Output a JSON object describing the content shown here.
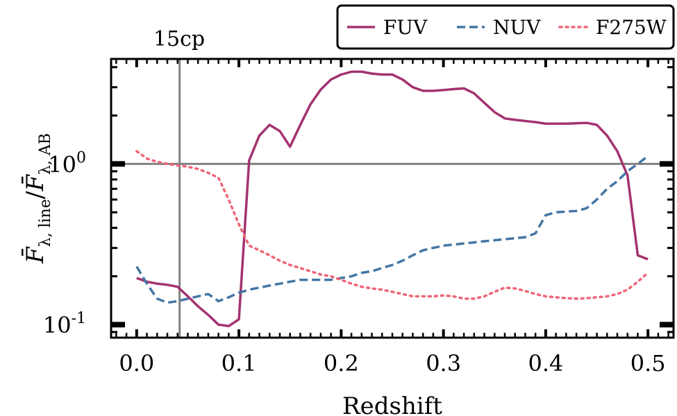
{
  "chart_data": {
    "type": "line",
    "title": "15cp",
    "xlabel": "Redshift",
    "ylabel": {
      "main": "F̄",
      "main_sub": "λ, line",
      "sep": "/",
      "denom": "F̄",
      "denom_sub": "λ, AB"
    },
    "xlim": [
      -0.025,
      0.525
    ],
    "ylim": [
      0.083,
      4.5
    ],
    "yscale": "log",
    "x_ticks": [
      {
        "value": 0.0,
        "label": "0.0"
      },
      {
        "value": 0.1,
        "label": "0.1"
      },
      {
        "value": 0.2,
        "label": "0.2"
      },
      {
        "value": 0.3,
        "label": "0.3"
      },
      {
        "value": 0.4,
        "label": "0.4"
      },
      {
        "value": 0.5,
        "label": "0.5"
      }
    ],
    "y_ticks": [
      {
        "value": 0.1,
        "base": "10",
        "exp": "-1"
      },
      {
        "value": 1.0,
        "base": "10",
        "exp": "0"
      }
    ],
    "reference_lines": {
      "vertical_x": 0.042,
      "horizontal_y": 1.0,
      "color": "#808080"
    },
    "legend": {
      "placement": "top-right, above plot"
    },
    "series": [
      {
        "name": "FUV",
        "color": "#a3336f",
        "style": "solid",
        "x": [
          0.0,
          0.01,
          0.02,
          0.03,
          0.04,
          0.05,
          0.06,
          0.07,
          0.08,
          0.09,
          0.1,
          0.11,
          0.12,
          0.13,
          0.14,
          0.15,
          0.16,
          0.17,
          0.18,
          0.19,
          0.2,
          0.21,
          0.22,
          0.23,
          0.24,
          0.25,
          0.26,
          0.27,
          0.28,
          0.29,
          0.3,
          0.31,
          0.32,
          0.33,
          0.34,
          0.35,
          0.36,
          0.37,
          0.38,
          0.39,
          0.4,
          0.41,
          0.42,
          0.43,
          0.44,
          0.45,
          0.46,
          0.47,
          0.48,
          0.49,
          0.5
        ],
        "y": [
          0.195,
          0.185,
          0.18,
          0.177,
          0.172,
          0.15,
          0.13,
          0.115,
          0.1,
          0.098,
          0.108,
          1.05,
          1.5,
          1.75,
          1.6,
          1.28,
          1.75,
          2.35,
          2.9,
          3.35,
          3.6,
          3.75,
          3.75,
          3.65,
          3.6,
          3.6,
          3.35,
          3.0,
          2.85,
          2.85,
          2.88,
          2.92,
          2.95,
          2.75,
          2.4,
          2.1,
          1.92,
          1.88,
          1.85,
          1.82,
          1.78,
          1.78,
          1.78,
          1.79,
          1.8,
          1.75,
          1.5,
          1.2,
          0.85,
          0.27,
          0.255
        ]
      },
      {
        "name": "NUV",
        "color": "#4476a4",
        "style": "dashed",
        "x": [
          0.0,
          0.01,
          0.02,
          0.03,
          0.04,
          0.05,
          0.06,
          0.07,
          0.08,
          0.09,
          0.1,
          0.11,
          0.12,
          0.13,
          0.14,
          0.15,
          0.16,
          0.17,
          0.18,
          0.19,
          0.2,
          0.21,
          0.22,
          0.23,
          0.24,
          0.25,
          0.26,
          0.27,
          0.28,
          0.29,
          0.3,
          0.31,
          0.32,
          0.33,
          0.34,
          0.35,
          0.36,
          0.37,
          0.38,
          0.39,
          0.4,
          0.41,
          0.42,
          0.43,
          0.44,
          0.45,
          0.46,
          0.47,
          0.48,
          0.49,
          0.5
        ],
        "y": [
          0.23,
          0.18,
          0.145,
          0.137,
          0.14,
          0.145,
          0.15,
          0.155,
          0.14,
          0.148,
          0.158,
          0.165,
          0.17,
          0.175,
          0.18,
          0.185,
          0.19,
          0.19,
          0.19,
          0.19,
          0.195,
          0.2,
          0.21,
          0.215,
          0.225,
          0.235,
          0.25,
          0.27,
          0.29,
          0.3,
          0.31,
          0.315,
          0.32,
          0.325,
          0.33,
          0.335,
          0.34,
          0.345,
          0.35,
          0.37,
          0.48,
          0.5,
          0.505,
          0.51,
          0.53,
          0.6,
          0.7,
          0.78,
          0.9,
          1.0,
          1.12
        ]
      },
      {
        "name": "F275W",
        "color": "#ee6677",
        "style": "dotted",
        "x": [
          0.0,
          0.01,
          0.02,
          0.03,
          0.04,
          0.05,
          0.06,
          0.07,
          0.08,
          0.09,
          0.1,
          0.11,
          0.12,
          0.13,
          0.14,
          0.15,
          0.16,
          0.17,
          0.18,
          0.19,
          0.2,
          0.21,
          0.22,
          0.23,
          0.24,
          0.25,
          0.26,
          0.27,
          0.28,
          0.29,
          0.3,
          0.31,
          0.32,
          0.33,
          0.34,
          0.35,
          0.36,
          0.37,
          0.38,
          0.39,
          0.4,
          0.41,
          0.42,
          0.43,
          0.44,
          0.45,
          0.46,
          0.47,
          0.48,
          0.49,
          0.5
        ],
        "y": [
          1.2,
          1.08,
          1.03,
          1.0,
          0.98,
          0.96,
          0.93,
          0.88,
          0.82,
          0.6,
          0.42,
          0.31,
          0.29,
          0.27,
          0.25,
          0.235,
          0.225,
          0.215,
          0.205,
          0.2,
          0.19,
          0.18,
          0.172,
          0.168,
          0.165,
          0.16,
          0.155,
          0.15,
          0.15,
          0.15,
          0.152,
          0.15,
          0.145,
          0.145,
          0.15,
          0.16,
          0.17,
          0.168,
          0.162,
          0.155,
          0.15,
          0.148,
          0.146,
          0.145,
          0.146,
          0.148,
          0.15,
          0.155,
          0.165,
          0.185,
          0.21
        ]
      }
    ]
  }
}
